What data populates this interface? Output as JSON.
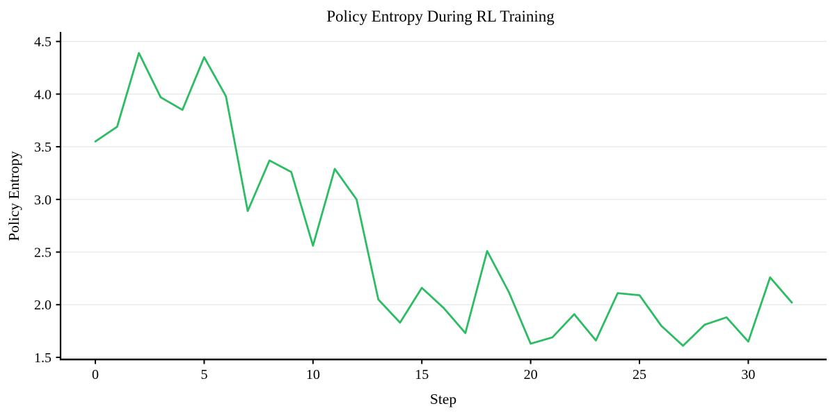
{
  "chart_data": {
    "type": "line",
    "title": "Policy Entropy During RL Training",
    "xlabel": "Step",
    "ylabel": "Policy Entropy",
    "series": [
      {
        "name": "policy-entropy",
        "x": [
          0,
          1,
          2,
          3,
          4,
          5,
          6,
          7,
          8,
          9,
          10,
          11,
          12,
          13,
          14,
          15,
          16,
          17,
          18,
          19,
          20,
          21,
          22,
          23,
          24,
          25,
          26,
          27,
          28,
          29,
          30,
          31,
          32
        ],
        "values": [
          3.55,
          3.69,
          4.39,
          3.97,
          3.85,
          4.35,
          3.98,
          2.89,
          3.37,
          3.26,
          2.56,
          3.29,
          3.0,
          2.05,
          1.83,
          2.16,
          1.97,
          1.73,
          2.51,
          2.12,
          1.63,
          1.69,
          1.91,
          1.66,
          2.11,
          2.09,
          1.8,
          1.61,
          1.81,
          1.88,
          1.65,
          2.26,
          2.02
        ]
      }
    ],
    "xlim": [
      -1.6,
      33.6
    ],
    "ylim": [
      1.48,
      4.59
    ],
    "xticks": [
      0,
      5,
      10,
      15,
      20,
      25,
      30
    ],
    "xtick_labels": [
      "0",
      "5",
      "10",
      "15",
      "20",
      "25",
      "30"
    ],
    "yticks": [
      1.5,
      2.0,
      2.5,
      3.0,
      3.5,
      4.0,
      4.5
    ],
    "ytick_labels": [
      "1.5",
      "2.0",
      "2.5",
      "3.0",
      "3.5",
      "4.0",
      "4.5"
    ],
    "grid": "horizontal-only",
    "legend": "none",
    "colors": {
      "line": "#2cbc63",
      "grid": "#e8e8e8",
      "axis": "#000000",
      "background": "#ffffff"
    }
  }
}
